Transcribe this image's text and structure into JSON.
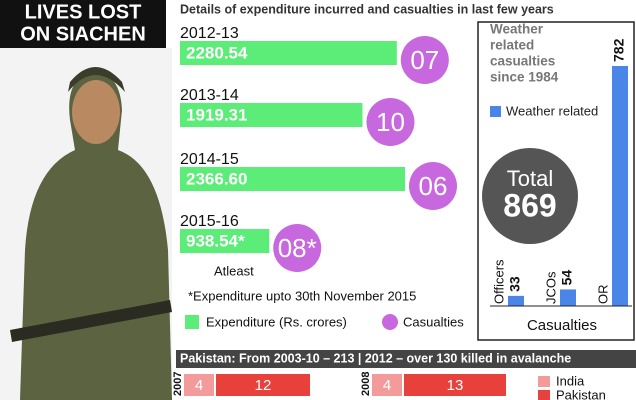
{
  "header": {
    "title": [
      "LIVES LOST",
      "ON SIACHEN"
    ]
  },
  "chart_data": [
    {
      "type": "bar-circle",
      "title": "Details of expenditure incurred and casualties in last few years",
      "categories": [
        "2012-13",
        "2013-14",
        "2014-15",
        "2015-16"
      ],
      "series": [
        {
          "name": "Expenditure (Rs. crores)",
          "color": "#5cec78",
          "values": [
            2280.54,
            1919.31,
            2366.6,
            938.54
          ],
          "value_labels": [
            "2280.54",
            "1919.31",
            "2366.60",
            "938.54*"
          ]
        },
        {
          "name": "Casualties",
          "color": "#c768df",
          "values": [
            7,
            10,
            6,
            8
          ],
          "value_labels": [
            "07",
            "10",
            "06",
            "08*"
          ]
        }
      ],
      "annotations": [
        "Atleast",
        "*Expenditure upto 30th November 2015"
      ]
    },
    {
      "type": "column",
      "title": [
        "Weather",
        "related",
        "casualties",
        "since 1984"
      ],
      "categories": [
        "Officers",
        "JCOs",
        "OR"
      ],
      "series": [
        {
          "name": "Weather related",
          "color": "#4a86e8",
          "values": [
            33,
            54,
            782
          ]
        }
      ],
      "total": {
        "label": "Total",
        "value": 869
      },
      "xlabel": "Casualties"
    },
    {
      "type": "stacked-bar",
      "title": "Pakistan: From 2003-10 – 213 | 2012 – over 130 killed in avalanche",
      "categories": [
        "2007",
        "2008"
      ],
      "series": [
        {
          "name": "India",
          "color": "#f39a9a",
          "values": [
            4,
            4
          ]
        },
        {
          "name": "Pakistan",
          "color": "#e8413c",
          "values": [
            12,
            13
          ]
        }
      ]
    }
  ]
}
